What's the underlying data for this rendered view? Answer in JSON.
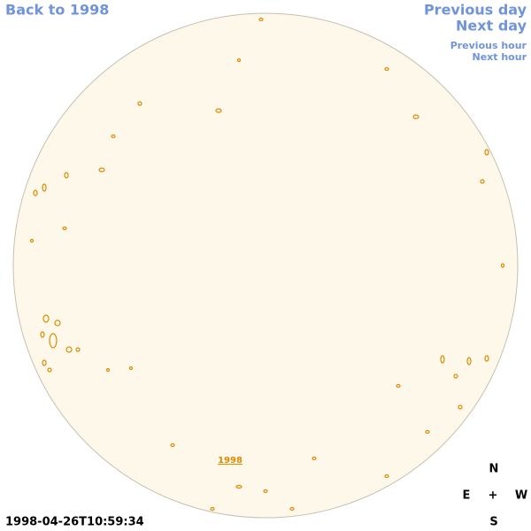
{
  "navigation": {
    "back": "Back to 1998",
    "previous_day": "Previous day",
    "next_day": "Next day",
    "previous_hour": "Previous hour",
    "next_hour": "Next hour"
  },
  "timestamp": "1998-04-26T10:59:34",
  "year_label": "1998",
  "compass": {
    "north": "N",
    "east": "E",
    "center": "+",
    "west": "W",
    "south": "S"
  }
}
